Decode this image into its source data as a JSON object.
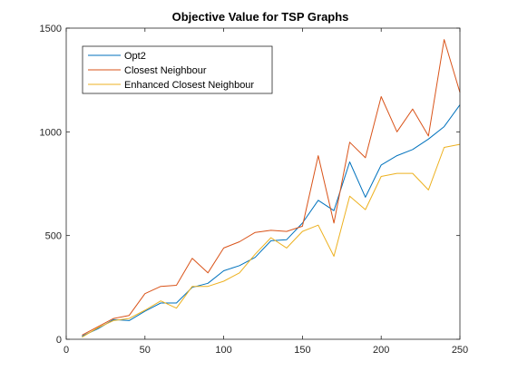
{
  "chart_data": {
    "type": "line",
    "title": "Objective Value for TSP Graphs",
    "xlabel": "",
    "ylabel": "",
    "xlim": [
      0,
      250
    ],
    "ylim": [
      0,
      1500
    ],
    "xticks": [
      0,
      50,
      100,
      150,
      200,
      250
    ],
    "yticks": [
      0,
      500,
      1000,
      1500
    ],
    "grid": false,
    "legend_position": "top-left",
    "x": [
      10,
      20,
      30,
      40,
      50,
      60,
      70,
      80,
      90,
      100,
      110,
      120,
      130,
      140,
      150,
      160,
      170,
      180,
      190,
      200,
      210,
      220,
      230,
      240,
      250
    ],
    "series": [
      {
        "name": "Opt2",
        "color": "#0072BD",
        "values": [
          15,
          50,
          95,
          90,
          135,
          175,
          175,
          250,
          270,
          330,
          355,
          395,
          475,
          480,
          560,
          670,
          620,
          855,
          685,
          840,
          885,
          915,
          965,
          1025,
          1130
        ]
      },
      {
        "name": "Closest Neighbour",
        "color": "#D95319",
        "values": [
          20,
          60,
          100,
          115,
          220,
          255,
          260,
          390,
          320,
          440,
          470,
          515,
          525,
          520,
          545,
          885,
          560,
          950,
          875,
          1170,
          1000,
          1110,
          980,
          1445,
          1190
        ]
      },
      {
        "name": "Enhanced Closest Neighbour",
        "color": "#EDB120",
        "values": [
          10,
          55,
          90,
          100,
          140,
          185,
          150,
          255,
          255,
          280,
          320,
          410,
          490,
          440,
          520,
          550,
          400,
          690,
          625,
          785,
          800,
          800,
          720,
          925,
          940
        ]
      }
    ]
  }
}
